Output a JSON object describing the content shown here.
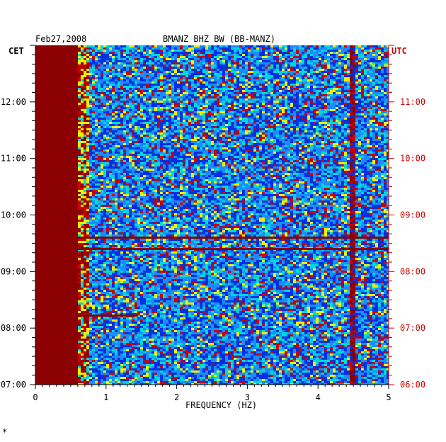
{
  "header": {
    "date": "Feb27,2008",
    "title": "BMANZ BHZ BW (BB-MANZ)",
    "left_tz": "CET",
    "right_tz": "UTC"
  },
  "footer_mark": "*",
  "colors": {
    "saturated": "#8b0000",
    "red": "#cc0000",
    "yellow": "#f0f000",
    "cyan": "#00d8d8",
    "light_blue": "#1a8cff",
    "blue": "#0030e0",
    "right_axis_text": "#cc0000"
  },
  "chart_data": {
    "type": "heatmap",
    "title": "BMANZ BHZ BW (BB-MANZ)",
    "xlabel": "FREQUENCY (HZ)",
    "xlim": [
      0,
      5
    ],
    "x_ticks": [
      "0",
      "1",
      "2",
      "3",
      "4",
      "5"
    ],
    "y_left_label": "CET",
    "y_right_label": "UTC",
    "y_left_ticks": [
      "07:00",
      "08:00",
      "09:00",
      "10:00",
      "11:00",
      "12:00"
    ],
    "y_right_ticks": [
      "06:00",
      "07:00",
      "08:00",
      "09:00",
      "10:00",
      "11:00"
    ],
    "time_range_cet_hours": [
      7.0,
      13.0
    ],
    "saturated_band_hz": [
      0.0,
      0.62
    ],
    "persistent_line_hz": 4.45,
    "horizontal_events_cet_hours": [
      9.6,
      9.4,
      8.22
    ],
    "color_scale": [
      "blue",
      "light_blue",
      "cyan",
      "yellow",
      "red",
      "dark_red"
    ]
  }
}
